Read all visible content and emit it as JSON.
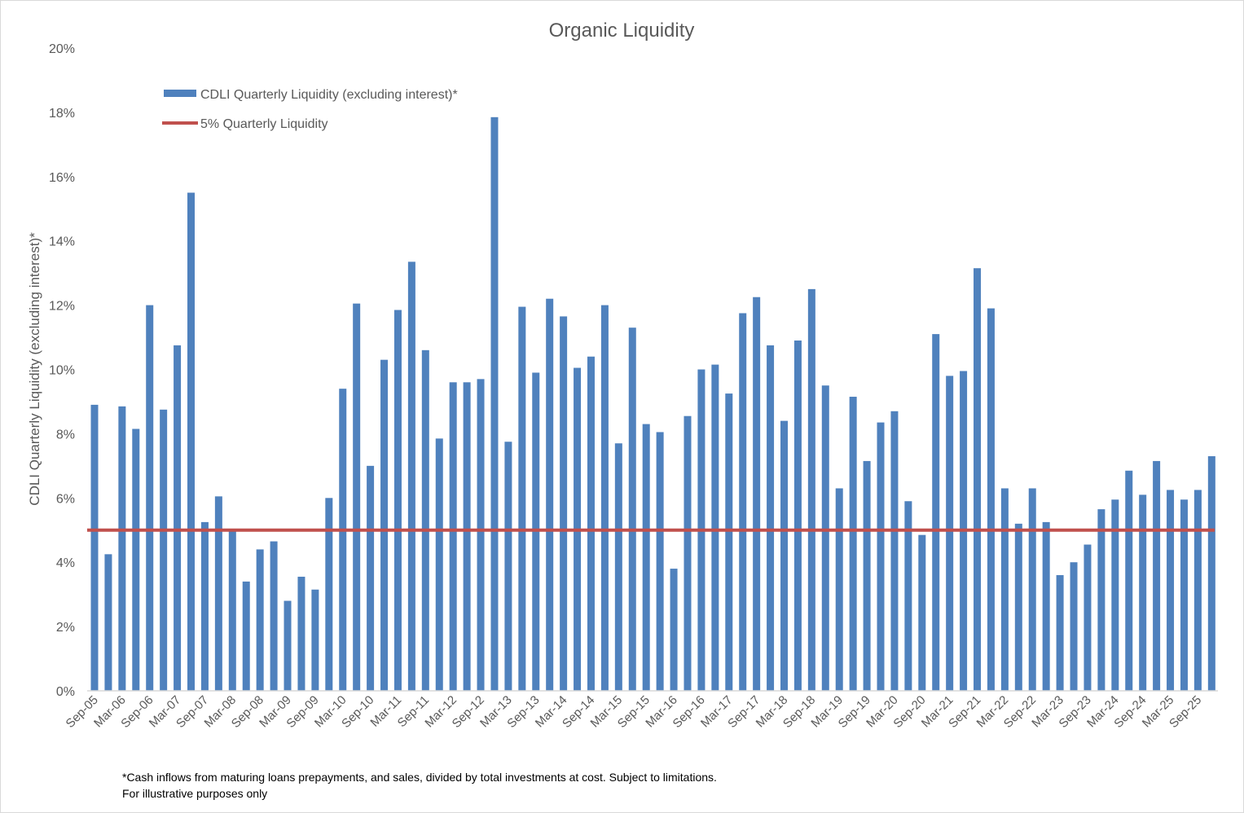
{
  "chart_data": {
    "type": "bar",
    "title": "Organic Liquidity",
    "ylabel": "CDLI Quarterly Liquidity (excluding interest)*",
    "xlabel": "",
    "ylim": [
      0,
      20
    ],
    "yticks": [
      "0%",
      "2%",
      "4%",
      "6%",
      "8%",
      "10%",
      "12%",
      "14%",
      "16%",
      "18%",
      "20%"
    ],
    "grid": false,
    "legend_position": "top-left",
    "categories": [
      "Sep-05",
      "Dec-05",
      "Mar-06",
      "Jun-06",
      "Sep-06",
      "Dec-06",
      "Mar-07",
      "Jun-07",
      "Sep-07",
      "Dec-07",
      "Mar-08",
      "Jun-08",
      "Sep-08",
      "Dec-08",
      "Mar-09",
      "Jun-09",
      "Sep-09",
      "Dec-09",
      "Mar-10",
      "Jun-10",
      "Sep-10",
      "Dec-10",
      "Mar-11",
      "Jun-11",
      "Sep-11",
      "Dec-11",
      "Mar-12",
      "Jun-12",
      "Sep-12",
      "Dec-12",
      "Mar-13",
      "Jun-13",
      "Sep-13",
      "Dec-13",
      "Mar-14",
      "Jun-14",
      "Sep-14",
      "Dec-14",
      "Mar-15",
      "Jun-15",
      "Sep-15",
      "Dec-15",
      "Mar-16",
      "Jun-16",
      "Sep-16",
      "Dec-16",
      "Mar-17",
      "Jun-17",
      "Sep-17",
      "Dec-17",
      "Mar-18",
      "Jun-18",
      "Sep-18",
      "Dec-18",
      "Mar-19",
      "Jun-19",
      "Sep-19",
      "Dec-19",
      "Mar-20",
      "Jun-20",
      "Sep-20",
      "Dec-20",
      "Mar-21",
      "Jun-21",
      "Sep-21",
      "Dec-21",
      "Mar-22",
      "Jun-22",
      "Sep-22",
      "Dec-22",
      "Mar-23",
      "Jun-23",
      "Sep-23",
      "Dec-23",
      "Mar-24",
      "Jun-24",
      "Sep-24",
      "Dec-24",
      "Mar-25",
      "Jun-25",
      "Sep-25",
      "Dec-25"
    ],
    "series": [
      {
        "name": "CDLI Quarterly Liquidity (excluding interest)*",
        "type": "bar",
        "color": "#4f81bd",
        "values": [
          8.9,
          4.25,
          8.85,
          8.15,
          12.0,
          8.75,
          10.75,
          15.5,
          5.25,
          6.05,
          5.0,
          3.4,
          4.4,
          4.65,
          2.8,
          3.55,
          3.15,
          6.0,
          9.4,
          12.05,
          7.0,
          10.3,
          11.85,
          13.35,
          10.6,
          7.85,
          9.6,
          9.6,
          9.7,
          17.85,
          7.75,
          11.95,
          9.9,
          12.2,
          11.65,
          10.05,
          10.4,
          12.0,
          7.7,
          11.3,
          8.3,
          8.05,
          3.8,
          8.55,
          10.0,
          10.15,
          9.25,
          11.75,
          12.25,
          10.75,
          8.4,
          10.9,
          12.5,
          9.5,
          6.3,
          9.15,
          7.15,
          8.35,
          8.7,
          5.9,
          4.85,
          11.1,
          9.8,
          9.95,
          13.15,
          11.9,
          6.3,
          5.2,
          6.3,
          5.25,
          3.6,
          4.0,
          4.55,
          5.65,
          5.95,
          6.85,
          6.1,
          7.15,
          6.25,
          5.95,
          6.25,
          7.3
        ]
      },
      {
        "name": "5% Quarterly Liquidity",
        "type": "line",
        "color": "#c0504d",
        "value": 5
      }
    ]
  },
  "footnote": {
    "line1": "*Cash inflows from maturing loans prepayments, and sales, divided by total investments at cost. Subject to limitations.",
    "line2": "For illustrative purposes only"
  }
}
